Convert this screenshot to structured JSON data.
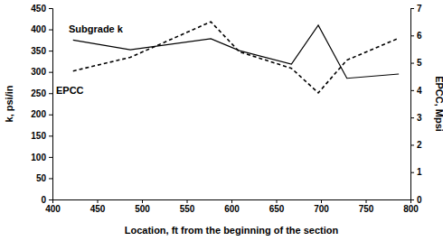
{
  "chart_data": {
    "type": "line",
    "x_label": "Location, ft from the beginning of the section",
    "y_label": "k, psi/in",
    "y2_label": "EPCC, Mpsi",
    "x": [
      423,
      487,
      577,
      609,
      667,
      697,
      729,
      787
    ],
    "series": [
      {
        "name": "Subgrade k",
        "color": "#000000",
        "line_style": "solid",
        "values": [
          375,
          352,
          378,
          350,
          318,
          410,
          285,
          295
        ]
      },
      {
        "name": "EPCC",
        "color": "#000000",
        "line_style": "dashed",
        "axis": "y2",
        "values": [
          4.7,
          5.2,
          6.5,
          5.4,
          4.8,
          3.9,
          5.1,
          5.9
        ]
      }
    ],
    "xlim": [
      400,
      800
    ],
    "xticks": [
      400,
      450,
      500,
      550,
      600,
      650,
      700,
      750,
      800
    ],
    "ylim": [
      0,
      450
    ],
    "yticks": [
      0,
      50,
      100,
      150,
      200,
      250,
      300,
      350,
      400,
      450
    ],
    "y2lim": [
      0,
      7
    ],
    "y2ticks": [
      0,
      1,
      2,
      3,
      4,
      5,
      6,
      7
    ],
    "grid": false
  }
}
